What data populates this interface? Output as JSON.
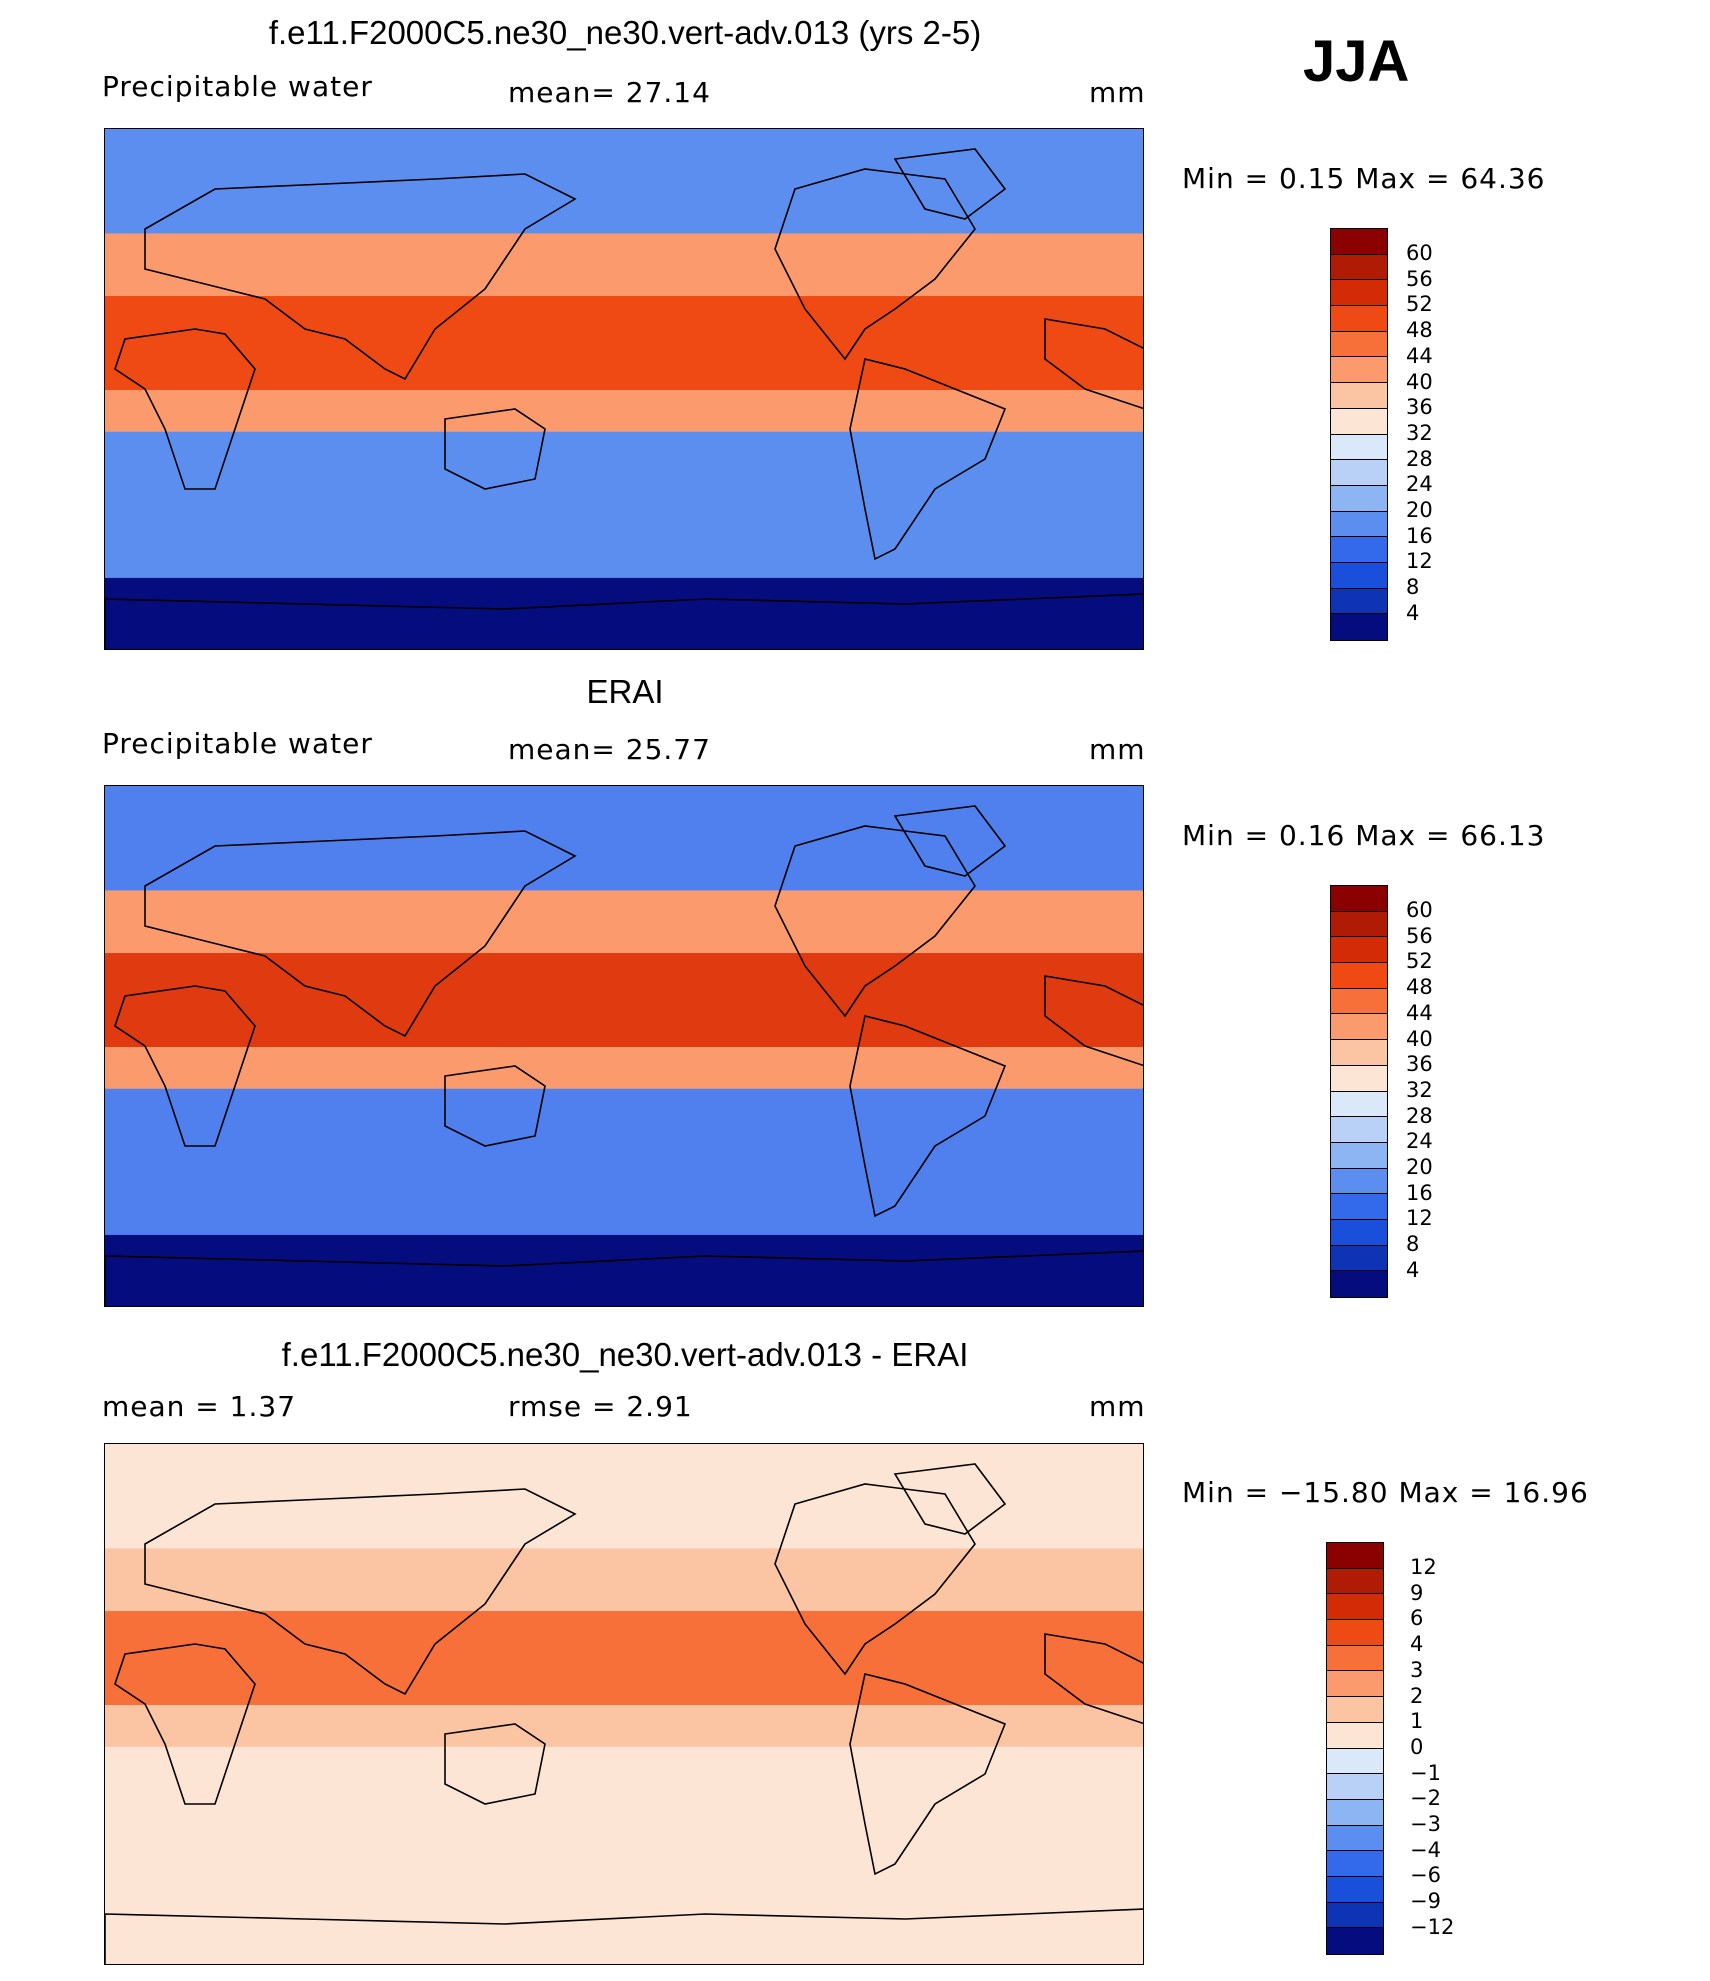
{
  "season": "JJA",
  "panels": [
    {
      "title": "f.e11.F2000C5.ne30_ne30.vert-adv.013 (yrs 2-5)",
      "left_label": "Precipitable  water",
      "center_label": "mean=   27.14",
      "right_label": "mm",
      "minmax": "Min  =     0.15  Max  =    64.36",
      "colorbar_labels": [
        "60",
        "56",
        "52",
        "48",
        "44",
        "40",
        "36",
        "32",
        "28",
        "24",
        "20",
        "16",
        "12",
        "8",
        "4"
      ],
      "colorbar_colors": [
        "#8b0000",
        "#b01b05",
        "#d42b07",
        "#ef4a14",
        "#f7703a",
        "#fa9a6d",
        "#fbc4a3",
        "#fde5d5",
        "#dbe8f9",
        "#b9d1f7",
        "#8db4f3",
        "#5c8eef",
        "#3369eb",
        "#1a4fdc",
        "#0e33b4",
        "#040c7e"
      ],
      "map_colors": {
        "tropics": "#ef4a14",
        "subtropics": "#fa9a6d",
        "midlat": "#5c8eef",
        "polar": "#040c7e"
      }
    },
    {
      "title": "ERAI",
      "left_label": "Precipitable  water",
      "center_label": "mean=   25.77",
      "right_label": "mm",
      "minmax": "Min  =     0.16  Max  =    66.13",
      "colorbar_labels": [
        "60",
        "56",
        "52",
        "48",
        "44",
        "40",
        "36",
        "32",
        "28",
        "24",
        "20",
        "16",
        "12",
        "8",
        "4"
      ],
      "colorbar_colors": [
        "#8b0000",
        "#b01b05",
        "#d42b07",
        "#ef4a14",
        "#f7703a",
        "#fa9a6d",
        "#fbc4a3",
        "#fde5d5",
        "#dbe8f9",
        "#b9d1f7",
        "#8db4f3",
        "#5c8eef",
        "#3369eb",
        "#1a4fdc",
        "#0e33b4",
        "#040c7e"
      ],
      "map_colors": {
        "tropics": "#e03a10",
        "subtropics": "#fa9a6d",
        "midlat": "#4f80ee",
        "polar": "#040c7e"
      }
    },
    {
      "title": "f.e11.F2000C5.ne30_ne30.vert-adv.013 - ERAI",
      "left_label": "mean  =     1.37",
      "center_label": "rmse  =     2.91",
      "right_label": "mm",
      "minmax": "Min  =  −15.80  Max  =    16.96",
      "colorbar_labels": [
        "12",
        "9",
        "6",
        "4",
        "3",
        "2",
        "1",
        "0",
        "−1",
        "−2",
        "−3",
        "−4",
        "−6",
        "−9",
        "−12"
      ],
      "colorbar_colors": [
        "#8b0000",
        "#b01b05",
        "#d42b07",
        "#ef4a14",
        "#f7703a",
        "#fa9a6d",
        "#fbc4a3",
        "#fde5d5",
        "#dbe8f9",
        "#b9d1f7",
        "#8db4f3",
        "#5c8eef",
        "#3369eb",
        "#1a4fdc",
        "#0e33b4",
        "#040c7e"
      ],
      "map_colors": {
        "tropics": "#f7703a",
        "subtropics": "#fbc4a3",
        "midlat": "#fde5d5",
        "polar": "#fde5d5"
      }
    }
  ]
}
